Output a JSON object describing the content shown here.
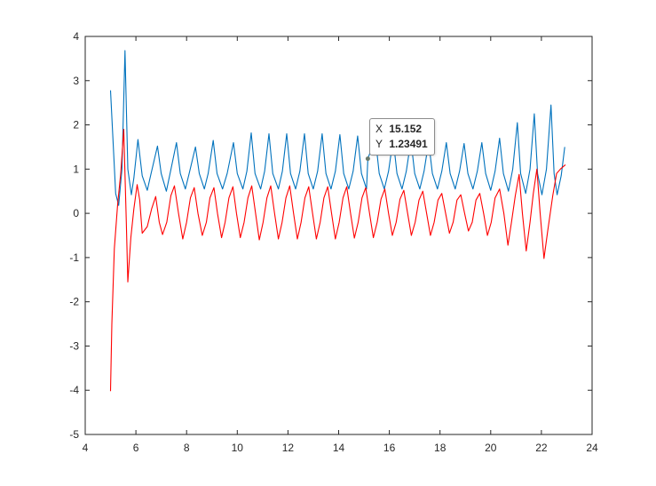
{
  "chart_data": {
    "type": "line",
    "title": "",
    "xlabel": "",
    "ylabel": "",
    "xlim": [
      4,
      24
    ],
    "ylim": [
      -5,
      4
    ],
    "xticks": [
      "4",
      "6",
      "8",
      "10",
      "12",
      "14",
      "16",
      "18",
      "20",
      "22",
      "24"
    ],
    "yticks": [
      "4",
      "3",
      "2",
      "1",
      "0",
      "-1",
      "-2",
      "-3",
      "-4",
      "-5"
    ],
    "grid": false,
    "series": [
      {
        "color": "#0072BD",
        "points": [
          [
            5.0,
            2.78
          ],
          [
            5.2,
            0.45
          ],
          [
            5.32,
            0.18
          ],
          [
            5.45,
            1.0
          ],
          [
            5.57,
            3.68
          ],
          [
            5.68,
            1.0
          ],
          [
            5.82,
            0.42
          ],
          [
            5.92,
            0.8
          ],
          [
            6.08,
            1.67
          ],
          [
            6.25,
            0.85
          ],
          [
            6.45,
            0.52
          ],
          [
            6.6,
            0.9
          ],
          [
            6.85,
            1.52
          ],
          [
            7.0,
            0.9
          ],
          [
            7.2,
            0.5
          ],
          [
            7.35,
            0.9
          ],
          [
            7.6,
            1.6
          ],
          [
            7.75,
            0.9
          ],
          [
            7.95,
            0.55
          ],
          [
            8.1,
            0.9
          ],
          [
            8.35,
            1.5
          ],
          [
            8.5,
            0.9
          ],
          [
            8.7,
            0.55
          ],
          [
            8.85,
            0.9
          ],
          [
            9.05,
            1.65
          ],
          [
            9.2,
            0.9
          ],
          [
            9.42,
            0.55
          ],
          [
            9.6,
            0.9
          ],
          [
            9.85,
            1.6
          ],
          [
            10.0,
            0.9
          ],
          [
            10.22,
            0.55
          ],
          [
            10.38,
            0.95
          ],
          [
            10.55,
            1.82
          ],
          [
            10.7,
            0.9
          ],
          [
            10.92,
            0.55
          ],
          [
            11.08,
            0.95
          ],
          [
            11.25,
            1.8
          ],
          [
            11.4,
            0.9
          ],
          [
            11.62,
            0.55
          ],
          [
            11.78,
            0.95
          ],
          [
            11.95,
            1.8
          ],
          [
            12.1,
            0.9
          ],
          [
            12.3,
            0.55
          ],
          [
            12.47,
            0.95
          ],
          [
            12.65,
            1.8
          ],
          [
            12.8,
            0.9
          ],
          [
            13.0,
            0.55
          ],
          [
            13.17,
            0.95
          ],
          [
            13.35,
            1.8
          ],
          [
            13.5,
            0.9
          ],
          [
            13.7,
            0.55
          ],
          [
            13.87,
            0.95
          ],
          [
            14.05,
            1.78
          ],
          [
            14.2,
            0.9
          ],
          [
            14.4,
            0.55
          ],
          [
            14.57,
            0.95
          ],
          [
            14.75,
            1.75
          ],
          [
            14.9,
            0.9
          ],
          [
            15.1,
            0.55
          ],
          [
            15.152,
            1.23491
          ],
          [
            15.45,
            1.7
          ],
          [
            15.6,
            0.9
          ],
          [
            15.8,
            0.55
          ],
          [
            15.97,
            0.95
          ],
          [
            16.15,
            1.68
          ],
          [
            16.3,
            0.9
          ],
          [
            16.5,
            0.55
          ],
          [
            16.67,
            0.95
          ],
          [
            16.85,
            1.65
          ],
          [
            17.0,
            0.9
          ],
          [
            17.2,
            0.55
          ],
          [
            17.37,
            0.95
          ],
          [
            17.55,
            1.62
          ],
          [
            17.7,
            0.9
          ],
          [
            17.9,
            0.55
          ],
          [
            18.07,
            0.95
          ],
          [
            18.25,
            1.6
          ],
          [
            18.4,
            0.9
          ],
          [
            18.6,
            0.55
          ],
          [
            18.77,
            0.95
          ],
          [
            18.95,
            1.58
          ],
          [
            19.1,
            0.9
          ],
          [
            19.3,
            0.55
          ],
          [
            19.47,
            0.95
          ],
          [
            19.65,
            1.6
          ],
          [
            19.8,
            0.9
          ],
          [
            20.0,
            0.52
          ],
          [
            20.17,
            0.95
          ],
          [
            20.35,
            1.7
          ],
          [
            20.5,
            0.9
          ],
          [
            20.7,
            0.5
          ],
          [
            20.87,
            1.0
          ],
          [
            21.05,
            2.05
          ],
          [
            21.18,
            0.9
          ],
          [
            21.38,
            0.45
          ],
          [
            21.55,
            1.0
          ],
          [
            21.72,
            2.25
          ],
          [
            21.85,
            0.9
          ],
          [
            22.02,
            0.42
          ],
          [
            22.2,
            1.0
          ],
          [
            22.38,
            2.45
          ],
          [
            22.5,
            0.9
          ],
          [
            22.62,
            0.42
          ],
          [
            22.78,
            0.85
          ],
          [
            22.92,
            1.5
          ]
        ]
      },
      {
        "color": "#FF0000",
        "points": [
          [
            5.0,
            -4.02
          ],
          [
            5.05,
            -2.5
          ],
          [
            5.15,
            -0.8
          ],
          [
            5.28,
            0.2
          ],
          [
            5.4,
            0.9
          ],
          [
            5.52,
            1.9
          ],
          [
            5.62,
            -0.2
          ],
          [
            5.68,
            -1.55
          ],
          [
            5.8,
            -0.55
          ],
          [
            5.92,
            0.1
          ],
          [
            6.05,
            0.65
          ],
          [
            6.15,
            0.3
          ],
          [
            6.25,
            -0.45
          ],
          [
            6.45,
            -0.3
          ],
          [
            6.62,
            0.1
          ],
          [
            6.78,
            0.38
          ],
          [
            6.92,
            -0.2
          ],
          [
            7.05,
            -0.48
          ],
          [
            7.22,
            -0.2
          ],
          [
            7.38,
            0.4
          ],
          [
            7.52,
            0.62
          ],
          [
            7.68,
            0.0
          ],
          [
            7.85,
            -0.58
          ],
          [
            8.0,
            -0.2
          ],
          [
            8.15,
            0.35
          ],
          [
            8.3,
            0.58
          ],
          [
            8.45,
            0.0
          ],
          [
            8.62,
            -0.5
          ],
          [
            8.78,
            -0.2
          ],
          [
            8.92,
            0.35
          ],
          [
            9.08,
            0.58
          ],
          [
            9.22,
            0.0
          ],
          [
            9.38,
            -0.55
          ],
          [
            9.52,
            -0.2
          ],
          [
            9.67,
            0.35
          ],
          [
            9.83,
            0.6
          ],
          [
            9.97,
            0.0
          ],
          [
            10.12,
            -0.55
          ],
          [
            10.27,
            -0.2
          ],
          [
            10.42,
            0.35
          ],
          [
            10.57,
            0.62
          ],
          [
            10.72,
            0.0
          ],
          [
            10.87,
            -0.6
          ],
          [
            11.02,
            -0.2
          ],
          [
            11.17,
            0.35
          ],
          [
            11.32,
            0.62
          ],
          [
            11.47,
            0.0
          ],
          [
            11.62,
            -0.58
          ],
          [
            11.77,
            -0.2
          ],
          [
            11.92,
            0.35
          ],
          [
            12.07,
            0.62
          ],
          [
            12.22,
            0.0
          ],
          [
            12.37,
            -0.58
          ],
          [
            12.52,
            -0.2
          ],
          [
            12.67,
            0.35
          ],
          [
            12.82,
            0.6
          ],
          [
            12.97,
            0.0
          ],
          [
            13.12,
            -0.58
          ],
          [
            13.27,
            -0.2
          ],
          [
            13.42,
            0.35
          ],
          [
            13.57,
            0.6
          ],
          [
            13.72,
            0.0
          ],
          [
            13.87,
            -0.58
          ],
          [
            14.02,
            -0.2
          ],
          [
            14.17,
            0.35
          ],
          [
            14.32,
            0.6
          ],
          [
            14.47,
            0.0
          ],
          [
            14.62,
            -0.56
          ],
          [
            14.77,
            -0.2
          ],
          [
            14.92,
            0.35
          ],
          [
            15.07,
            0.58
          ],
          [
            15.22,
            0.0
          ],
          [
            15.37,
            -0.55
          ],
          [
            15.52,
            -0.2
          ],
          [
            15.67,
            0.32
          ],
          [
            15.82,
            0.55
          ],
          [
            15.97,
            0.0
          ],
          [
            16.12,
            -0.5
          ],
          [
            16.27,
            -0.2
          ],
          [
            16.42,
            0.32
          ],
          [
            16.57,
            0.52
          ],
          [
            16.72,
            0.0
          ],
          [
            16.87,
            -0.5
          ],
          [
            17.02,
            -0.2
          ],
          [
            17.17,
            0.3
          ],
          [
            17.32,
            0.5
          ],
          [
            17.47,
            0.0
          ],
          [
            17.62,
            -0.5
          ],
          [
            17.77,
            -0.2
          ],
          [
            17.92,
            0.3
          ],
          [
            18.07,
            0.45
          ],
          [
            18.22,
            0.0
          ],
          [
            18.37,
            -0.45
          ],
          [
            18.52,
            -0.2
          ],
          [
            18.67,
            0.3
          ],
          [
            18.82,
            0.42
          ],
          [
            18.97,
            0.0
          ],
          [
            19.12,
            -0.4
          ],
          [
            19.27,
            -0.2
          ],
          [
            19.42,
            0.3
          ],
          [
            19.57,
            0.45
          ],
          [
            19.72,
            0.0
          ],
          [
            19.87,
            -0.5
          ],
          [
            20.02,
            -0.2
          ],
          [
            20.17,
            0.35
          ],
          [
            20.35,
            0.55
          ],
          [
            20.52,
            0.0
          ],
          [
            20.68,
            -0.72
          ],
          [
            20.82,
            -0.2
          ],
          [
            20.97,
            0.4
          ],
          [
            21.12,
            0.88
          ],
          [
            21.25,
            0.0
          ],
          [
            21.4,
            -0.85
          ],
          [
            21.55,
            -0.2
          ],
          [
            21.68,
            0.45
          ],
          [
            21.82,
            1.0
          ],
          [
            21.95,
            0.0
          ],
          [
            22.1,
            -1.02
          ],
          [
            22.25,
            -0.4
          ],
          [
            22.45,
            0.4
          ],
          [
            22.6,
            0.9
          ],
          [
            22.75,
            1.0
          ],
          [
            22.95,
            1.1
          ]
        ]
      }
    ],
    "datatip": {
      "series_index": 0,
      "x_label": "X",
      "x_value": "15.152",
      "y_label": "Y",
      "y_value": "1.23491",
      "marker_color": "#6b7a6b"
    }
  }
}
